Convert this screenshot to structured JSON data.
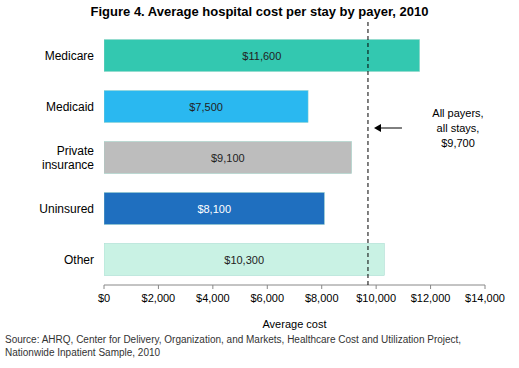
{
  "chart_data": {
    "type": "bar",
    "orientation": "horizontal",
    "title": "Figure 4. Average hospital cost per stay by payer, 2010",
    "categories": [
      "Medicare",
      "Medicaid",
      "Private insurance",
      "Uninsured",
      "Other"
    ],
    "values": [
      11600,
      7500,
      9100,
      8100,
      10300
    ],
    "value_labels": [
      "$11,600",
      "$7,500",
      "$9,100",
      "$8,100",
      "$10,300"
    ],
    "colors": [
      "#33c8b0",
      "#2ab8f0",
      "#bdbdbd",
      "#1f6fbf",
      "#c9f2e4"
    ],
    "data_labels": true,
    "xlim": [
      0,
      14000
    ],
    "xticks": [
      {
        "value": 0,
        "label": "$0"
      },
      {
        "value": 2000,
        "label": "$2,000"
      },
      {
        "value": 4000,
        "label": "$4,000"
      },
      {
        "value": 6000,
        "label": "$6,000"
      },
      {
        "value": 8000,
        "label": "$8,000"
      },
      {
        "value": 10000,
        "label": "$10,000"
      },
      {
        "value": 12000,
        "label": "$12,000"
      },
      {
        "value": 14000,
        "label": "$14,000"
      }
    ],
    "x_label": "Average cost",
    "grid": false,
    "annotation": {
      "value": 9700,
      "label_lines": [
        "All payers,",
        "all stays,",
        "$9,700"
      ]
    },
    "source": "Source: AHRQ, Center for Delivery, Organization, and Markets, Healthcare Cost and Utilization Project, Nationwide Inpatient Sample, 2010"
  }
}
